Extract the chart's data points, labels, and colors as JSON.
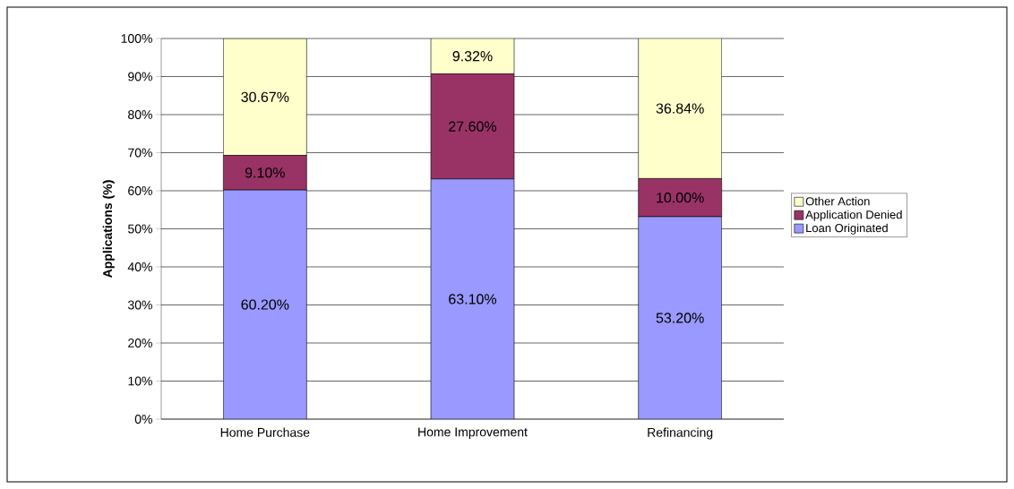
{
  "chart_data": {
    "type": "bar",
    "stacked": true,
    "ylabel": "Applications (%)",
    "categories": [
      "Home Purchase",
      "Home Improvement",
      "Refinancing"
    ],
    "series": [
      {
        "name": "Loan Originated",
        "color": "#9999ff",
        "values": [
          60.2,
          63.1,
          53.2
        ],
        "value_labels": [
          "60.20%",
          "63.10%",
          "53.20%"
        ]
      },
      {
        "name": "Application Denied",
        "color": "#993366",
        "values": [
          9.1,
          27.6,
          10.0
        ],
        "value_labels": [
          "9.10%",
          "27.60%",
          "10.00%"
        ]
      },
      {
        "name": "Other Action",
        "color": "#ffffcc",
        "values": [
          30.67,
          9.32,
          36.84
        ],
        "value_labels": [
          "30.67%",
          "9.32%",
          "36.84%"
        ]
      }
    ],
    "ylim": [
      0,
      100
    ],
    "yticks": [
      {
        "value": 0,
        "label": "0%"
      },
      {
        "value": 10,
        "label": "10%"
      },
      {
        "value": 20,
        "label": "20%"
      },
      {
        "value": 30,
        "label": "30%"
      },
      {
        "value": 40,
        "label": "40%"
      },
      {
        "value": 50,
        "label": "50%"
      },
      {
        "value": 60,
        "label": "60%"
      },
      {
        "value": 70,
        "label": "70%"
      },
      {
        "value": 80,
        "label": "80%"
      },
      {
        "value": 90,
        "label": "90%"
      },
      {
        "value": 100,
        "label": "100%"
      }
    ],
    "grid": "y",
    "legend": "right"
  }
}
